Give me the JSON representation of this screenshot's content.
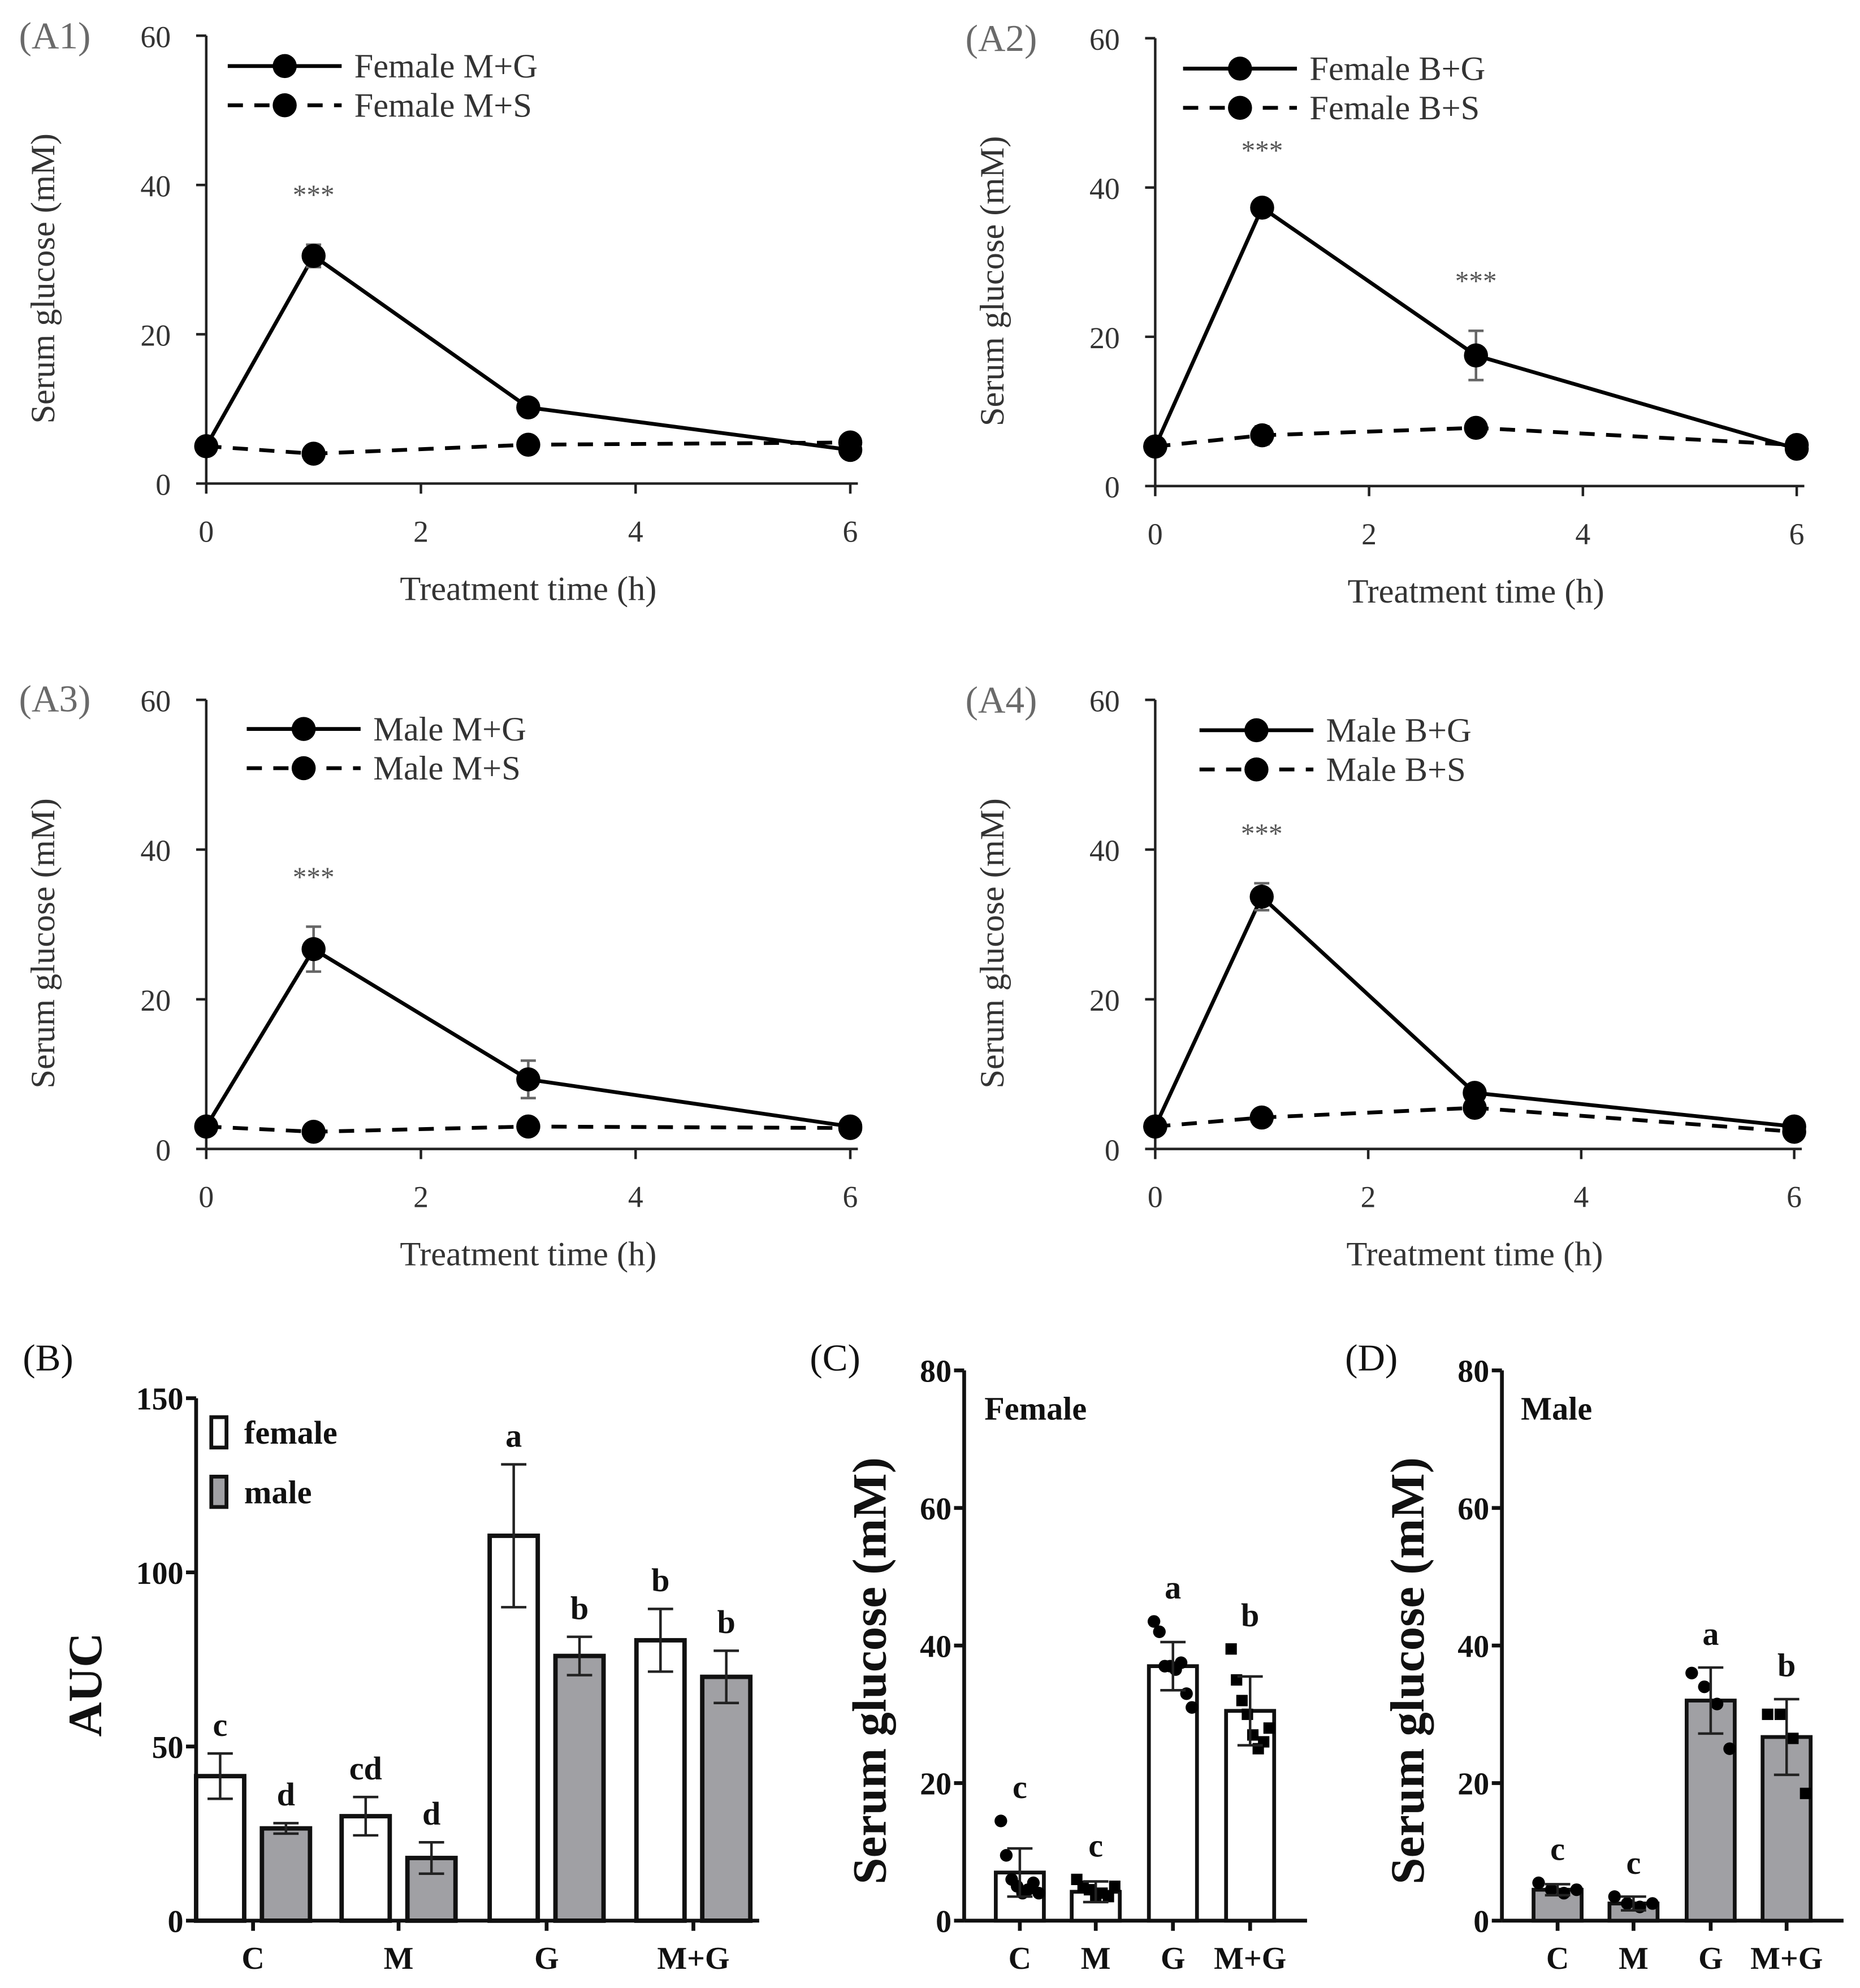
{
  "chart_data": [
    {
      "type": "line",
      "panel": "(A1)",
      "xlabel": "Treatment time (h)",
      "ylabel": "Serum glucose (mM)",
      "xlim": [
        0,
        6
      ],
      "ylim": [
        0,
        60
      ],
      "xticks": [
        "0",
        "2",
        "4",
        "6"
      ],
      "yticks": [
        "0",
        "20",
        "40",
        "60"
      ],
      "x": [
        0,
        1,
        3,
        6
      ],
      "series": [
        {
          "name": "Female M+G",
          "style": "solid",
          "values": [
            5,
            30.5,
            10.2,
            4.5
          ],
          "errors": [
            0,
            1.5,
            0.5,
            0.5
          ]
        },
        {
          "name": "Female M+S",
          "style": "dashed",
          "values": [
            5,
            4,
            5.2,
            5.5
          ],
          "errors": [
            0,
            0.5,
            0.5,
            0.5
          ]
        }
      ],
      "annotations": [
        {
          "x": 1,
          "text": "***"
        }
      ]
    },
    {
      "type": "line",
      "panel": "(A2)",
      "xlabel": "Treatment time (h)",
      "ylabel": "Serum glucose (mM)",
      "xlim": [
        0,
        6
      ],
      "ylim": [
        0,
        60
      ],
      "xticks": [
        "0",
        "2",
        "4",
        "6"
      ],
      "yticks": [
        "0",
        "20",
        "40",
        "60"
      ],
      "x": [
        0,
        1,
        3,
        6
      ],
      "series": [
        {
          "name": "Female B+G",
          "style": "solid",
          "values": [
            5.3,
            37.3,
            17.5,
            5
          ],
          "errors": [
            0,
            1,
            3.3,
            0.5
          ]
        },
        {
          "name": "Female B+S",
          "style": "dashed",
          "values": [
            5.3,
            6.8,
            7.8,
            5.5
          ],
          "errors": [
            0,
            1.2,
            0.6,
            0.5
          ]
        }
      ],
      "annotations": [
        {
          "x": 1,
          "text": "***"
        },
        {
          "x": 3,
          "text": "***"
        }
      ]
    },
    {
      "type": "line",
      "panel": "(A3)",
      "xlabel": "Treatment time (h)",
      "ylabel": "Serum glucose (mM)",
      "xlim": [
        0,
        6
      ],
      "ylim": [
        0,
        60
      ],
      "xticks": [
        "0",
        "2",
        "4",
        "6"
      ],
      "yticks": [
        "0",
        "20",
        "40",
        "60"
      ],
      "x": [
        0,
        1,
        3,
        6
      ],
      "series": [
        {
          "name": "Male M+G",
          "style": "solid",
          "values": [
            3,
            26.7,
            9.3,
            3
          ],
          "errors": [
            0,
            3,
            2.5,
            0.3
          ]
        },
        {
          "name": "Male M+S",
          "style": "dashed",
          "values": [
            3,
            2.3,
            3,
            2.8
          ],
          "errors": [
            0,
            0.4,
            1,
            0.3
          ]
        }
      ],
      "annotations": [
        {
          "x": 1,
          "text": "***"
        }
      ]
    },
    {
      "type": "line",
      "panel": "(A4)",
      "xlabel": "Treatment time (h)",
      "ylabel": "Serum glucose (mM)",
      "xlim": [
        0,
        6
      ],
      "ylim": [
        0,
        60
      ],
      "xticks": [
        "0",
        "2",
        "4",
        "6"
      ],
      "yticks": [
        "0",
        "20",
        "40",
        "60"
      ],
      "x": [
        0,
        1,
        3,
        6
      ],
      "series": [
        {
          "name": "Male B+G",
          "style": "solid",
          "values": [
            3,
            33.7,
            7.5,
            3
          ],
          "errors": [
            0,
            1.8,
            0.5,
            0.3
          ]
        },
        {
          "name": "Male B+S",
          "style": "dashed",
          "values": [
            3,
            4.2,
            5.5,
            2.3
          ],
          "errors": [
            0,
            0.5,
            0.5,
            0.3
          ]
        }
      ],
      "annotations": [
        {
          "x": 1,
          "text": "***"
        }
      ]
    },
    {
      "type": "bar",
      "panel": "(B)",
      "ylabel": "AUC",
      "ylim": [
        0,
        150
      ],
      "yticks": [
        "0",
        "50",
        "100",
        "150"
      ],
      "categories": [
        "C",
        "M",
        "G",
        "M+G"
      ],
      "series": [
        {
          "name": "female",
          "color": "#ffffff",
          "values": [
            41.5,
            30,
            110.5,
            80.5
          ],
          "errors": [
            6.5,
            5.5,
            20.5,
            9
          ],
          "letters": [
            "c",
            "cd",
            "a",
            "b"
          ]
        },
        {
          "name": "male",
          "color": "#a0a0a4",
          "values": [
            26.5,
            18,
            76,
            70
          ],
          "errors": [
            1.5,
            4.5,
            5.5,
            7.5
          ],
          "letters": [
            "d",
            "d",
            "b",
            "b"
          ]
        }
      ]
    },
    {
      "type": "bar",
      "panel": "(C)",
      "title": "Female",
      "ylabel": "Serum glucose (mM)",
      "ylim": [
        0,
        80
      ],
      "yticks": [
        "0",
        "20",
        "40",
        "60",
        "80"
      ],
      "categories": [
        "C",
        "M",
        "G",
        "M+G"
      ],
      "color": "#ffffff",
      "values": [
        7,
        4.2,
        37,
        30.5
      ],
      "errors": [
        3.5,
        1.5,
        3.5,
        5
      ],
      "letters": [
        "c",
        "c",
        "a",
        "b"
      ],
      "markers": [
        "circle",
        "square",
        "circle",
        "square"
      ],
      "points": [
        [
          14.5,
          9.5,
          6,
          5,
          4,
          4.5,
          5.5,
          4
        ],
        [
          6,
          5,
          4.5,
          3.5,
          4,
          3.5,
          5
        ],
        [
          43.5,
          42,
          37,
          37,
          36.5,
          37.5,
          33,
          31
        ],
        [
          39.5,
          35,
          32,
          30,
          27,
          25,
          26,
          28
        ]
      ]
    },
    {
      "type": "bar",
      "panel": "(D)",
      "title": "Male",
      "ylabel": "Serum glucose (mM)",
      "ylim": [
        0,
        80
      ],
      "yticks": [
        "0",
        "20",
        "40",
        "60",
        "80"
      ],
      "categories": [
        "C",
        "M",
        "G",
        "M+G"
      ],
      "color": "#a0a0a4",
      "values": [
        4.5,
        2.5,
        32,
        26.7
      ],
      "errors": [
        0.8,
        1,
        4.8,
        5.5
      ],
      "letters": [
        "c",
        "c",
        "a",
        "b"
      ],
      "markers": [
        "circle",
        "circle",
        "circle",
        "square"
      ],
      "points": [
        [
          5.5,
          4.5,
          4,
          4.5
        ],
        [
          3.5,
          2.5,
          2,
          2.5
        ],
        [
          36,
          34,
          31.5,
          25
        ],
        [
          30,
          30,
          26.5,
          18.5
        ]
      ]
    }
  ]
}
